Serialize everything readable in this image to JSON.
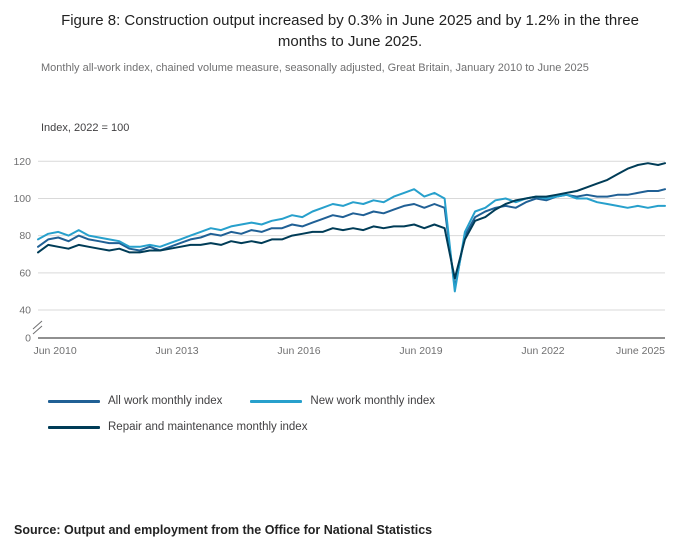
{
  "title": "Figure 8: Construction output increased by 0.3% in June 2025 and by 1.2% in the three months to June 2025.",
  "subtitle": "Monthly all-work index, chained volume measure, seasonally adjusted, Great Britain, January 2010 to June 2025",
  "source": "Source: Output and employment from the Office for National Statistics",
  "colors": {
    "all_work": "#206095",
    "new_work": "#27A0CC",
    "repair_maintenance": "#003C57",
    "gridline": "#d9d9d9",
    "axis": "#222222",
    "tick_text": "#707071"
  },
  "chart_data": {
    "type": "line",
    "title": "Figure 8: Construction output increased by 0.3% in June 2025 and by 1.2% in the three months to June 2025.",
    "subtitle": "Monthly all-work index, chained volume measure, seasonally adjusted, Great Britain, January 2010 to June 2025",
    "xlabel": "",
    "ylabel": "Index, 2022 = 100",
    "xlim": [
      2010.0,
      2025.42
    ],
    "ylim": [
      0,
      125
    ],
    "axis_break_between_0_and_40": true,
    "grid": "horizontal",
    "legend_position": "bottom",
    "y_ticks": [
      0,
      40,
      60,
      80,
      100,
      120
    ],
    "x_ticks": [
      {
        "x": 2010.42,
        "label": "Jun 2010"
      },
      {
        "x": 2013.42,
        "label": "Jun 2013"
      },
      {
        "x": 2016.42,
        "label": "Jun 2016"
      },
      {
        "x": 2019.42,
        "label": "Jun 2019"
      },
      {
        "x": 2022.42,
        "label": "Jun 2022"
      },
      {
        "x": 2025.42,
        "label": "June 2025"
      }
    ],
    "x": [
      2010,
      2010.25,
      2010.5,
      2010.75,
      2011,
      2011.25,
      2011.5,
      2011.75,
      2012,
      2012.25,
      2012.5,
      2012.75,
      2013,
      2013.25,
      2013.5,
      2013.75,
      2014,
      2014.25,
      2014.5,
      2014.75,
      2015,
      2015.25,
      2015.5,
      2015.75,
      2016,
      2016.25,
      2016.5,
      2016.75,
      2017,
      2017.25,
      2017.5,
      2017.75,
      2018,
      2018.25,
      2018.5,
      2018.75,
      2019,
      2019.25,
      2019.5,
      2019.75,
      2020,
      2020.25,
      2020.5,
      2020.75,
      2021,
      2021.25,
      2021.5,
      2021.75,
      2022,
      2022.25,
      2022.5,
      2022.75,
      2023,
      2023.25,
      2023.5,
      2023.75,
      2024,
      2024.25,
      2024.5,
      2024.75,
      2025,
      2025.25,
      2025.42
    ],
    "series": [
      {
        "name": "All work monthly index",
        "color": "#206095",
        "values": [
          74,
          78,
          79,
          77,
          80,
          78,
          77,
          76,
          76,
          73,
          72,
          74,
          72,
          74,
          76,
          78,
          79,
          81,
          80,
          82,
          81,
          83,
          82,
          84,
          84,
          86,
          85,
          87,
          89,
          91,
          90,
          92,
          91,
          93,
          92,
          94,
          96,
          97,
          95,
          97,
          95,
          52,
          80,
          90,
          93,
          95,
          96,
          95,
          98,
          100,
          99,
          101,
          102,
          101,
          102,
          101,
          101,
          102,
          102,
          103,
          104,
          104,
          105
        ]
      },
      {
        "name": "New work monthly index",
        "color": "#27A0CC",
        "values": [
          78,
          81,
          82,
          80,
          83,
          80,
          79,
          78,
          77,
          74,
          74,
          75,
          74,
          76,
          78,
          80,
          82,
          84,
          83,
          85,
          86,
          87,
          86,
          88,
          89,
          91,
          90,
          93,
          95,
          97,
          96,
          98,
          97,
          99,
          98,
          101,
          103,
          105,
          101,
          103,
          100,
          50,
          82,
          93,
          95,
          99,
          100,
          98,
          100,
          101,
          100,
          101,
          102,
          100,
          100,
          98,
          97,
          96,
          95,
          96,
          95,
          96,
          96
        ]
      },
      {
        "name": "Repair and maintenance monthly index",
        "color": "#003C57",
        "values": [
          71,
          75,
          74,
          73,
          75,
          74,
          73,
          72,
          73,
          71,
          71,
          72,
          72,
          73,
          74,
          75,
          75,
          76,
          75,
          77,
          76,
          77,
          76,
          78,
          78,
          80,
          81,
          82,
          82,
          84,
          83,
          84,
          83,
          85,
          84,
          85,
          85,
          86,
          84,
          86,
          84,
          57,
          78,
          88,
          90,
          94,
          97,
          99,
          100,
          101,
          101,
          102,
          103,
          104,
          106,
          108,
          110,
          113,
          116,
          118,
          119,
          118,
          119
        ]
      }
    ]
  }
}
